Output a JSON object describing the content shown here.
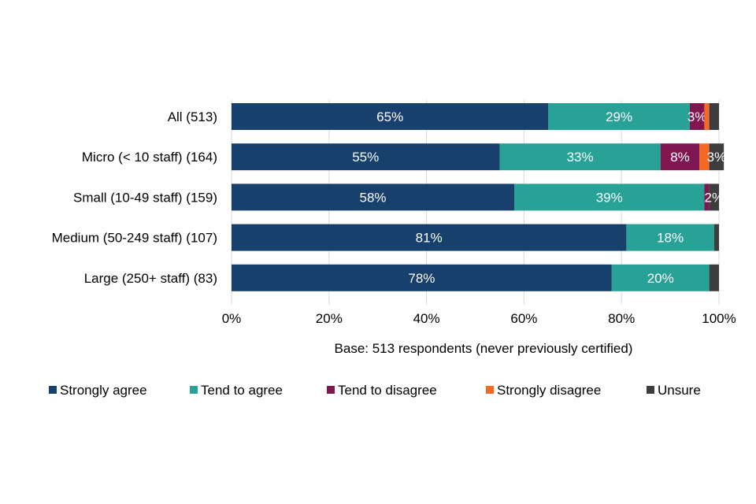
{
  "chart_data": {
    "type": "bar",
    "orientation": "horizontal-stacked-100",
    "categories": [
      "All (513)",
      "Micro (< 10 staff) (164)",
      "Small (10-49 staff) (159)",
      "Medium (50-249 staff) (107)",
      "Large (250+ staff) (83)"
    ],
    "series": [
      {
        "name": "Strongly agree",
        "color": "#17406D",
        "values": [
          65,
          55,
          58,
          81,
          78
        ],
        "labels": [
          "65%",
          "55%",
          "58%",
          "81%",
          "78%"
        ]
      },
      {
        "name": "Tend to agree",
        "color": "#28A197",
        "values": [
          29,
          33,
          39,
          18,
          20
        ],
        "labels": [
          "29%",
          "33%",
          "39%",
          "18%",
          "20%"
        ]
      },
      {
        "name": "Tend to disagree",
        "color": "#801650",
        "values": [
          3,
          8,
          1,
          0,
          0
        ],
        "labels": [
          "3%",
          "8%",
          "",
          "",
          ""
        ]
      },
      {
        "name": "Strongly disagree",
        "color": "#F46A25",
        "values": [
          1,
          2,
          0,
          0,
          0
        ],
        "labels": [
          "",
          "",
          "",
          "",
          ""
        ]
      },
      {
        "name": "Unsure",
        "color": "#3D3D3D",
        "values": [
          2,
          3,
          2,
          1,
          2
        ],
        "labels": [
          "",
          "3%",
          "2%",
          "",
          ""
        ]
      }
    ],
    "xticks": [
      "0%",
      "20%",
      "40%",
      "60%",
      "80%",
      "100%"
    ],
    "xlim": [
      0,
      100
    ],
    "xlabel": "Base: 513 respondents (never previously certified)",
    "legend_position": "bottom",
    "grid": true
  }
}
